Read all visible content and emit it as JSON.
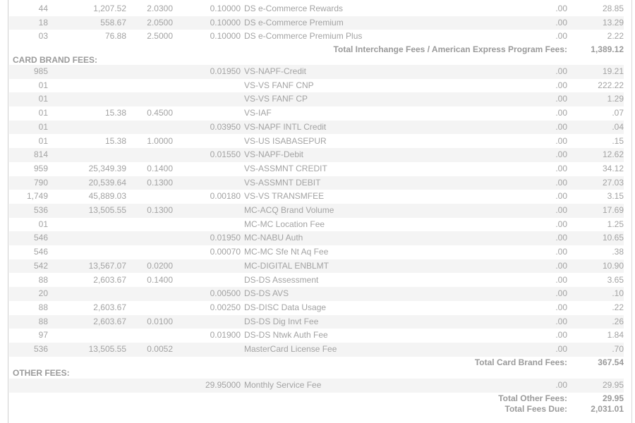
{
  "interchange_rows": [
    {
      "count": "44",
      "amount": "1,207.52",
      "rate": "2.0300",
      "per_item": "0.10000",
      "description": "DS e-Commerce Rewards",
      "discount": ".00",
      "total": "28.85"
    },
    {
      "count": "18",
      "amount": "558.67",
      "rate": "2.0500",
      "per_item": "0.10000",
      "description": "DS e-Commerce Premium",
      "discount": ".00",
      "total": "13.29"
    },
    {
      "count": "03",
      "amount": "76.88",
      "rate": "2.5000",
      "per_item": "0.10000",
      "description": "DS e-Commerce Premium Plus",
      "discount": ".00",
      "total": "2.22"
    }
  ],
  "interchange_total": {
    "label": "Total Interchange Fees / American Express Program Fees:",
    "value": "1,389.12"
  },
  "card_brand_header": "CARD BRAND FEES:",
  "card_brand_rows": [
    {
      "count": "985",
      "amount": "",
      "rate": "",
      "per_item": "0.01950",
      "description": "VS-NAPF-Credit",
      "discount": ".00",
      "total": "19.21"
    },
    {
      "count": "01",
      "amount": "",
      "rate": "",
      "per_item": "",
      "description": "VS-VS FANF CNP",
      "discount": ".00",
      "total": "222.22"
    },
    {
      "count": "01",
      "amount": "",
      "rate": "",
      "per_item": "",
      "description": "VS-VS FANF CP",
      "discount": ".00",
      "total": "1.29"
    },
    {
      "count": "01",
      "amount": "15.38",
      "rate": "0.4500",
      "per_item": "",
      "description": "VS-IAF",
      "discount": ".00",
      "total": ".07"
    },
    {
      "count": "01",
      "amount": "",
      "rate": "",
      "per_item": "0.03950",
      "description": "VS-NAPF INTL Credit",
      "discount": ".00",
      "total": ".04"
    },
    {
      "count": "01",
      "amount": "15.38",
      "rate": "1.0000",
      "per_item": "",
      "description": "VS-US ISABASEPUR",
      "discount": ".00",
      "total": ".15"
    },
    {
      "count": "814",
      "amount": "",
      "rate": "",
      "per_item": "0.01550",
      "description": "VS-NAPF-Debit",
      "discount": ".00",
      "total": "12.62"
    },
    {
      "count": "959",
      "amount": "25,349.39",
      "rate": "0.1400",
      "per_item": "",
      "description": "VS-ASSMNT CREDIT",
      "discount": ".00",
      "total": "34.12"
    },
    {
      "count": "790",
      "amount": "20,539.64",
      "rate": "0.1300",
      "per_item": "",
      "description": "VS-ASSMNT DEBIT",
      "discount": ".00",
      "total": "27.03"
    },
    {
      "count": "1,749",
      "amount": "45,889.03",
      "rate": "",
      "per_item": "0.00180",
      "description": "VS-VS TRANSMFEE",
      "discount": ".00",
      "total": "3.15"
    },
    {
      "count": "536",
      "amount": "13,505.55",
      "rate": "0.1300",
      "per_item": "",
      "description": "MC-ACQ Brand Volume",
      "discount": ".00",
      "total": "17.69"
    },
    {
      "count": "01",
      "amount": "",
      "rate": "",
      "per_item": "",
      "description": "MC-MC Location Fee",
      "discount": ".00",
      "total": "1.25"
    },
    {
      "count": "546",
      "amount": "",
      "rate": "",
      "per_item": "0.01950",
      "description": "MC-NABU Auth",
      "discount": ".00",
      "total": "10.65"
    },
    {
      "count": "546",
      "amount": "",
      "rate": "",
      "per_item": "0.00070",
      "description": "MC-MC Sfe Nt Aq Fee",
      "discount": ".00",
      "total": ".38"
    },
    {
      "count": "542",
      "amount": "13,567.07",
      "rate": "0.0200",
      "per_item": "",
      "description": "MC-DIGITAL ENBLMT",
      "discount": ".00",
      "total": "10.90"
    },
    {
      "count": "88",
      "amount": "2,603.67",
      "rate": "0.1400",
      "per_item": "",
      "description": "DS-DS Assessment",
      "discount": ".00",
      "total": "3.65"
    },
    {
      "count": "20",
      "amount": "",
      "rate": "",
      "per_item": "0.00500",
      "description": "DS-DS AVS",
      "discount": ".00",
      "total": ".10"
    },
    {
      "count": "88",
      "amount": "2,603.67",
      "rate": "",
      "per_item": "0.00250",
      "description": "DS-DISC Data Usage",
      "discount": ".00",
      "total": ".22"
    },
    {
      "count": "88",
      "amount": "2,603.67",
      "rate": "0.0100",
      "per_item": "",
      "description": "DS-DS Dig Invt Fee",
      "discount": ".00",
      "total": ".26"
    },
    {
      "count": "97",
      "amount": "",
      "rate": "",
      "per_item": "0.01900",
      "description": "DS-DS Ntwk Auth Fee",
      "discount": ".00",
      "total": "1.84"
    },
    {
      "count": "536",
      "amount": "13,505.55",
      "rate": "0.0052",
      "per_item": "",
      "description": "MasterCard License Fee",
      "discount": ".00",
      "total": ".70"
    }
  ],
  "card_brand_total": {
    "label": "Total Card Brand Fees:",
    "value": "367.54"
  },
  "other_header": "OTHER FEES:",
  "other_rows": [
    {
      "count": "",
      "amount": "",
      "rate": "",
      "per_item": "29.95000",
      "description": "Monthly Service Fee",
      "discount": ".00",
      "total": "29.95"
    }
  ],
  "other_total": {
    "label": "Total Other Fees:",
    "value": "29.95"
  },
  "fees_due_total": {
    "label": "Total Fees Due:",
    "value": "2,031.01"
  }
}
